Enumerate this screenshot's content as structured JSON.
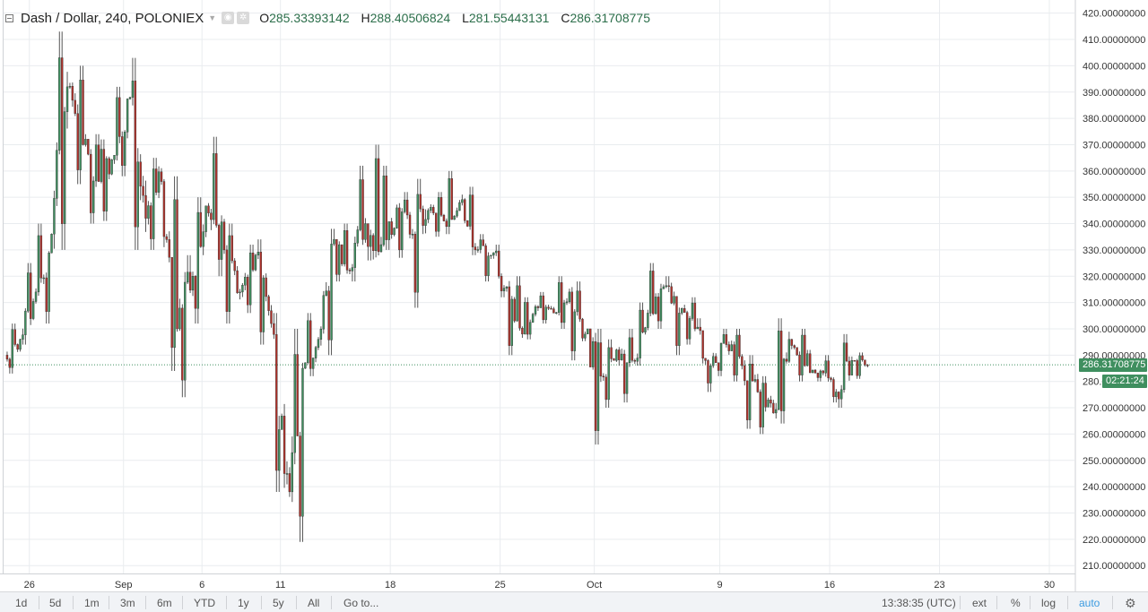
{
  "legend": {
    "symbol_label": "Dash / Dollar, 240, POLONIEX",
    "open_key": "O",
    "open_value": "285.33393142",
    "high_key": "H",
    "high_value": "288.40506824",
    "low_key": "L",
    "low_value": "281.55443131",
    "close_key": "C",
    "close_value": "286.31708775"
  },
  "current_price_label": "286.31708775",
  "countdown_label": "02:21:24",
  "colors": {
    "up": "#3f8f5f",
    "down": "#b0312a",
    "wick": "#555555",
    "grid": "#e9ecef",
    "price_line": "#3f8f5f",
    "countdown_bg": "#3f8f5f"
  },
  "bottom_bar": {
    "ranges": [
      "1d",
      "5d",
      "1m",
      "3m",
      "6m",
      "YTD",
      "1y",
      "5y",
      "All"
    ],
    "goto_label": "Go to...",
    "time_label": "13:38:35 (UTC)",
    "ext_label": "ext",
    "percent_label": "%",
    "log_label": "log",
    "auto_label": "auto",
    "settings_icon": "gear-icon"
  },
  "chart_data": {
    "type": "candlestick",
    "title": "Dash / Dollar, 240, POLONIEX",
    "y_axis_labels": [
      "420.00000000",
      "410.00000000",
      "400.00000000",
      "390.00000000",
      "380.00000000",
      "370.00000000",
      "360.00000000",
      "350.00000000",
      "340.00000000",
      "330.00000000",
      "320.00000000",
      "310.00000000",
      "300.00000000",
      "290.00000000",
      "280.00000000",
      "270.00000000",
      "260.00000000",
      "250.00000000",
      "240.00000000",
      "230.00000000",
      "220.00000000",
      "210.00000000"
    ],
    "y_ticks": [
      420,
      410,
      400,
      390,
      380,
      370,
      360,
      350,
      340,
      330,
      320,
      310,
      300,
      290,
      280,
      270,
      260,
      250,
      240,
      230,
      220,
      210
    ],
    "ylim": [
      207,
      425
    ],
    "x_tick_labels": [
      {
        "label": "26",
        "day": 1
      },
      {
        "label": "Sep",
        "day": 7
      },
      {
        "label": "6",
        "day": 12
      },
      {
        "label": "11",
        "day": 17
      },
      {
        "label": "18",
        "day": 24
      },
      {
        "label": "25",
        "day": 31
      },
      {
        "label": "Oct",
        "day": 37
      },
      {
        "label": "9",
        "day": 45
      },
      {
        "label": "16",
        "day": 52
      },
      {
        "label": "23",
        "day": 59
      },
      {
        "label": "30",
        "day": 66
      }
    ],
    "x_day_range": [
      -0.7,
      67.6
    ],
    "grid": true,
    "bar_interval": "240",
    "daily_ohlc": [
      {
        "day": 0,
        "o": 290,
        "h": 302,
        "l": 283,
        "c": 296
      },
      {
        "day": 1,
        "o": 296,
        "h": 325,
        "l": 294,
        "c": 314
      },
      {
        "day": 2,
        "o": 314,
        "h": 340,
        "l": 302,
        "c": 336
      },
      {
        "day": 3,
        "o": 336,
        "h": 413,
        "l": 330,
        "c": 392
      },
      {
        "day": 4,
        "o": 392,
        "h": 400,
        "l": 355,
        "c": 370
      },
      {
        "day": 5,
        "o": 370,
        "h": 374,
        "l": 340,
        "c": 356
      },
      {
        "day": 6,
        "o": 356,
        "h": 372,
        "l": 341,
        "c": 366
      },
      {
        "day": 7,
        "o": 366,
        "h": 392,
        "l": 358,
        "c": 388
      },
      {
        "day": 8,
        "o": 388,
        "h": 403,
        "l": 330,
        "c": 342
      },
      {
        "day": 9,
        "o": 342,
        "h": 365,
        "l": 330,
        "c": 356
      },
      {
        "day": 10,
        "o": 356,
        "h": 358,
        "l": 284,
        "c": 300
      },
      {
        "day": 11,
        "o": 300,
        "h": 328,
        "l": 274,
        "c": 320
      },
      {
        "day": 12,
        "o": 320,
        "h": 350,
        "l": 302,
        "c": 344
      },
      {
        "day": 13,
        "o": 344,
        "h": 373,
        "l": 320,
        "c": 330
      },
      {
        "day": 14,
        "o": 330,
        "h": 340,
        "l": 302,
        "c": 314
      },
      {
        "day": 15,
        "o": 314,
        "h": 332,
        "l": 306,
        "c": 328
      },
      {
        "day": 16,
        "o": 328,
        "h": 334,
        "l": 294,
        "c": 302
      },
      {
        "day": 17,
        "o": 302,
        "h": 306,
        "l": 238,
        "c": 245
      },
      {
        "day": 18,
        "o": 245,
        "h": 300,
        "l": 219,
        "c": 285
      },
      {
        "day": 19,
        "o": 285,
        "h": 306,
        "l": 282,
        "c": 296
      },
      {
        "day": 20,
        "o": 296,
        "h": 338,
        "l": 290,
        "c": 334
      },
      {
        "day": 21,
        "o": 334,
        "h": 340,
        "l": 318,
        "c": 322
      },
      {
        "day": 22,
        "o": 322,
        "h": 362,
        "l": 318,
        "c": 340
      },
      {
        "day": 23,
        "o": 340,
        "h": 370,
        "l": 326,
        "c": 332
      },
      {
        "day": 24,
        "o": 332,
        "h": 362,
        "l": 330,
        "c": 346
      },
      {
        "day": 25,
        "o": 346,
        "h": 352,
        "l": 327,
        "c": 336
      },
      {
        "day": 26,
        "o": 336,
        "h": 357,
        "l": 308,
        "c": 345
      },
      {
        "day": 27,
        "o": 345,
        "h": 352,
        "l": 335,
        "c": 341
      },
      {
        "day": 28,
        "o": 341,
        "h": 360,
        "l": 336,
        "c": 348
      },
      {
        "day": 29,
        "o": 348,
        "h": 354,
        "l": 328,
        "c": 330
      },
      {
        "day": 30,
        "o": 330,
        "h": 336,
        "l": 318,
        "c": 328
      },
      {
        "day": 31,
        "o": 328,
        "h": 332,
        "l": 312,
        "c": 316
      },
      {
        "day": 32,
        "o": 316,
        "h": 320,
        "l": 290,
        "c": 298
      },
      {
        "day": 33,
        "o": 298,
        "h": 312,
        "l": 296,
        "c": 308
      },
      {
        "day": 34,
        "o": 308,
        "h": 314,
        "l": 302,
        "c": 306
      },
      {
        "day": 35,
        "o": 306,
        "h": 320,
        "l": 300,
        "c": 314
      },
      {
        "day": 36,
        "o": 314,
        "h": 318,
        "l": 288,
        "c": 298
      },
      {
        "day": 37,
        "o": 298,
        "h": 300,
        "l": 256,
        "c": 282
      },
      {
        "day": 38,
        "o": 282,
        "h": 296,
        "l": 270,
        "c": 292
      },
      {
        "day": 39,
        "o": 292,
        "h": 300,
        "l": 272,
        "c": 288
      },
      {
        "day": 40,
        "o": 288,
        "h": 310,
        "l": 286,
        "c": 306
      },
      {
        "day": 41,
        "o": 306,
        "h": 325,
        "l": 300,
        "c": 316
      },
      {
        "day": 42,
        "o": 316,
        "h": 320,
        "l": 290,
        "c": 306
      },
      {
        "day": 43,
        "o": 306,
        "h": 312,
        "l": 294,
        "c": 300
      },
      {
        "day": 44,
        "o": 300,
        "h": 304,
        "l": 276,
        "c": 286
      },
      {
        "day": 45,
        "o": 286,
        "h": 300,
        "l": 282,
        "c": 294
      },
      {
        "day": 46,
        "o": 294,
        "h": 300,
        "l": 280,
        "c": 286
      },
      {
        "day": 47,
        "o": 286,
        "h": 290,
        "l": 262,
        "c": 276
      },
      {
        "day": 48,
        "o": 276,
        "h": 282,
        "l": 260,
        "c": 268
      },
      {
        "day": 49,
        "o": 268,
        "h": 304,
        "l": 264,
        "c": 296
      },
      {
        "day": 50,
        "o": 296,
        "h": 300,
        "l": 280,
        "c": 286
      },
      {
        "day": 51,
        "o": 286,
        "h": 292,
        "l": 280,
        "c": 284
      },
      {
        "day": 52,
        "o": 284,
        "h": 290,
        "l": 272,
        "c": 276
      },
      {
        "day": 53,
        "o": 276,
        "h": 298,
        "l": 270,
        "c": 288
      },
      {
        "day": 54,
        "o": 288,
        "h": 291,
        "l": 281,
        "c": 286
      }
    ],
    "candles_per_day": 6
  }
}
